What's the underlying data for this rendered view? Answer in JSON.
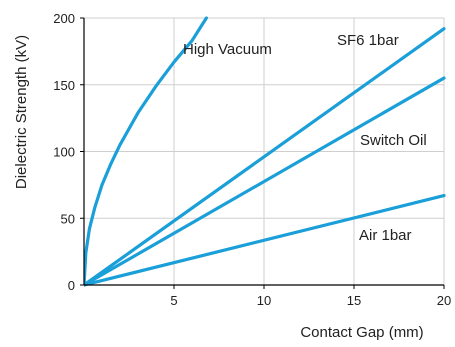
{
  "chart_data": {
    "type": "line",
    "xlabel": "Contact Gap (mm)",
    "ylabel": "Dielectric Strength (kV)",
    "xlim": [
      0,
      20
    ],
    "ylim": [
      0,
      200
    ],
    "x_ticks": [
      5,
      10,
      15,
      20
    ],
    "y_ticks": [
      0,
      50,
      100,
      150,
      200
    ],
    "grid": true,
    "line_color": "#1a9fd8",
    "series": [
      {
        "name": "High Vacuum",
        "x": [
          0,
          0.1,
          0.3,
          0.6,
          1,
          1.5,
          2,
          3,
          4,
          5,
          6,
          6.8
        ],
        "y": [
          0,
          24,
          42,
          58,
          75,
          91,
          105,
          129,
          149,
          167,
          183,
          200
        ]
      },
      {
        "name": "SF6 1bar",
        "x": [
          0,
          20
        ],
        "y": [
          0,
          192
        ]
      },
      {
        "name": "Switch Oil",
        "x": [
          0,
          20
        ],
        "y": [
          0,
          155
        ]
      },
      {
        "name": "Air 1bar",
        "x": [
          0,
          20
        ],
        "y": [
          0,
          67
        ]
      }
    ]
  }
}
